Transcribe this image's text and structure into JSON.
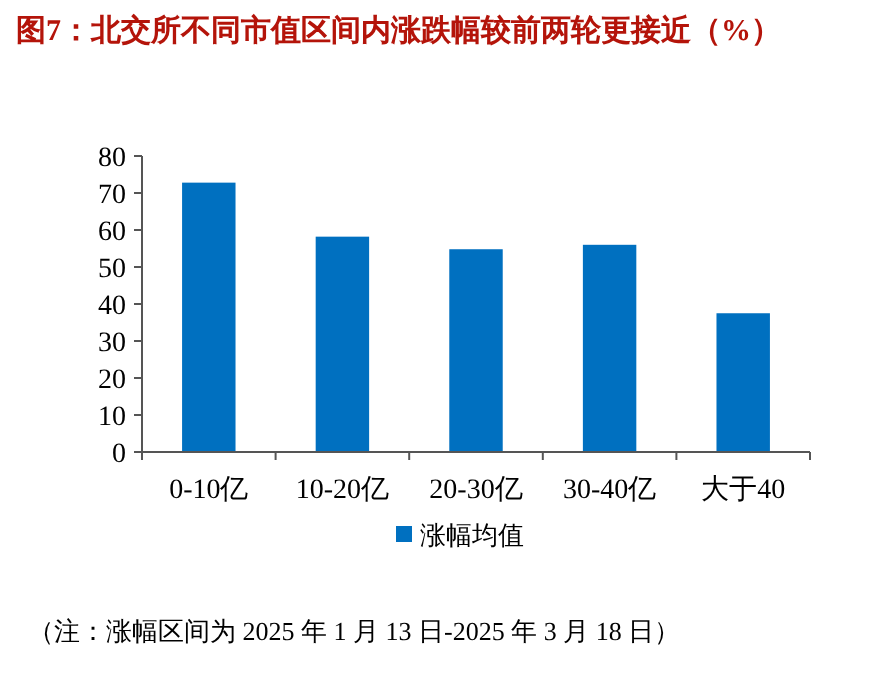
{
  "chart_data": {
    "type": "bar",
    "title": "图7：北交所不同市值区间内涨跌幅较前两轮更接近（%）",
    "categories": [
      "0-10亿",
      "10-20亿",
      "20-30亿",
      "30-40亿",
      "大于40"
    ],
    "series": [
      {
        "name": "涨幅均值",
        "color": "#0070c0",
        "values": [
          72.8,
          58.2,
          54.8,
          56.0,
          37.5
        ]
      }
    ],
    "ylim": [
      0,
      80
    ],
    "yticks": [
      0,
      10,
      20,
      30,
      40,
      50,
      60,
      70,
      80
    ],
    "grid": false,
    "legend": "bottom",
    "annotations": [
      "（注：涨幅区间为 2025 年 1 月 13 日-2025 年 3 月 18 日）"
    ]
  }
}
